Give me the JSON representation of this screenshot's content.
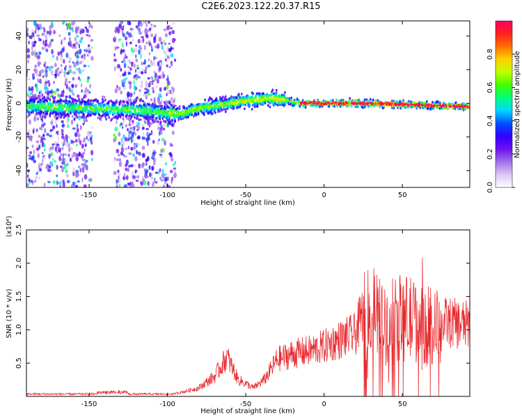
{
  "title": "C2E6.2023.122.20.37.R15",
  "chart_data": [
    {
      "type": "heatmap",
      "xlabel": "Height of straight line (km)",
      "ylabel": "Frequency (Hz)",
      "xlim": [
        -190,
        93
      ],
      "ylim": [
        -50,
        49
      ],
      "xticks": [
        -150,
        -100,
        -50,
        0,
        50
      ],
      "yticks": [
        -40,
        -20,
        0,
        20,
        40
      ],
      "colorbar": {
        "label": "Normalized spectral amplitude",
        "range": [
          0.0,
          1.0
        ],
        "ticks": [
          "0.0",
          "0.2",
          "0.4",
          "0.6",
          "0.8"
        ],
        "colors": [
          "#ffffff",
          "#dcc6f4",
          "#a070e8",
          "#7010f0",
          "#3000ff",
          "#0050ff",
          "#00d8ff",
          "#00ff80",
          "#40ff00",
          "#c0ff00",
          "#ffd000",
          "#ff7000",
          "#ff2020",
          "#ff0060"
        ]
      },
      "ridge": [
        {
          "x": -180,
          "y": -2
        },
        {
          "x": -150,
          "y": -3
        },
        {
          "x": -120,
          "y": -4
        },
        {
          "x": -100,
          "y": -6
        },
        {
          "x": -90,
          "y": -6
        },
        {
          "x": -80,
          "y": -3
        },
        {
          "x": -60,
          "y": 0
        },
        {
          "x": -45,
          "y": 2
        },
        {
          "x": -35,
          "y": 3
        },
        {
          "x": -25,
          "y": 2
        },
        {
          "x": -15,
          "y": 0
        },
        {
          "x": 0,
          "y": 0
        },
        {
          "x": 30,
          "y": 0
        },
        {
          "x": 60,
          "y": -1
        },
        {
          "x": 93,
          "y": -2
        }
      ]
    },
    {
      "type": "line",
      "xlabel": "Height of straight line (km)",
      "ylabel": "SNR (10 * v/v)",
      "yscale_note": "(x10⁴)",
      "xlim": [
        -190,
        93
      ],
      "ylim": [
        0,
        2.5
      ],
      "xticks": [
        -150,
        -100,
        -50,
        0,
        50
      ],
      "yticks": [
        "0.5",
        "1.0",
        "1.5",
        "2.0",
        "2.5"
      ],
      "color": "#e8282c",
      "envelope": [
        {
          "x": -190,
          "y": 0.02
        },
        {
          "x": -140,
          "y": 0.05
        },
        {
          "x": -100,
          "y": 0.03
        },
        {
          "x": -90,
          "y": 0.08
        },
        {
          "x": -80,
          "y": 0.15
        },
        {
          "x": -70,
          "y": 0.35
        },
        {
          "x": -62,
          "y": 0.7
        },
        {
          "x": -55,
          "y": 0.3
        },
        {
          "x": -45,
          "y": 0.15
        },
        {
          "x": -38,
          "y": 0.3
        },
        {
          "x": -30,
          "y": 0.65
        },
        {
          "x": -20,
          "y": 0.75
        },
        {
          "x": -10,
          "y": 0.8
        },
        {
          "x": 0,
          "y": 0.88
        },
        {
          "x": 10,
          "y": 1.0
        },
        {
          "x": 20,
          "y": 1.1
        },
        {
          "x": 25,
          "y": 1.5
        },
        {
          "x": 30,
          "y": 1.6
        },
        {
          "x": 40,
          "y": 1.3
        },
        {
          "x": 50,
          "y": 1.5
        },
        {
          "x": 60,
          "y": 1.4
        },
        {
          "x": 70,
          "y": 1.3
        },
        {
          "x": 80,
          "y": 1.3
        },
        {
          "x": 93,
          "y": 1.25
        }
      ]
    }
  ]
}
